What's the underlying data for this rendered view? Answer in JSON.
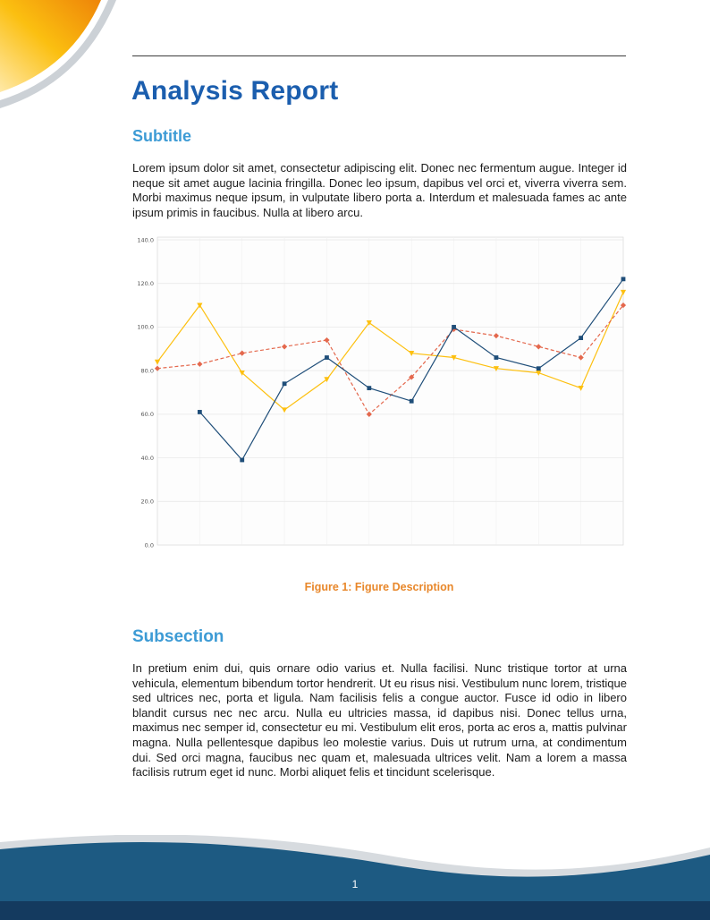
{
  "document": {
    "title": "Analysis Report",
    "section": {
      "heading": "Subtitle",
      "body": "Lorem ipsum dolor sit amet, consectetur adipiscing elit. Donec nec fermentum augue. Integer id neque sit amet augue lacinia fringilla. Donec leo ipsum, dapibus vel orci et, viverra viverra sem. Morbi maximus neque ipsum, in vulputate libero porta a. Interdum et malesuada fames ac ante ipsum primis in faucibus. Nulla at libero arcu."
    },
    "figure": {
      "caption_label": "Figure 1:",
      "caption_text": "Figure Description"
    },
    "subsection": {
      "heading": "Subsection",
      "body": "In pretium enim dui, quis ornare odio varius et. Nulla facilisi. Nunc tristique tortor at urna vehicula, elementum bibendum tortor hendrerit. Ut eu risus nisi. Vestibulum nunc lorem, tristique sed ultrices nec, porta et ligula. Nam facilisis felis a congue auctor. Fusce id odio in libero blandit cursus nec nec arcu. Nulla eu ultricies massa, id dapibus nisi. Donec tellus urna, maximus nec semper id, consectetur eu mi. Vestibulum elit eros, porta ac eros a, mattis pulvinar magna. Nulla pellentesque dapibus leo molestie varius. Duis ut rutrum urna, at condimentum dui. Sed orci magna, faucibus nec quam et, malesuada ultrices velit. Nam a lorem a massa facilisis rutrum eget id nunc. Morbi aliquet felis et tincidunt scelerisque."
    },
    "footer": {
      "page_number": "1"
    }
  },
  "colors": {
    "title_blue": "#1b5eae",
    "heading_blue": "#3d9bd5",
    "caption_orange": "#e8872a",
    "corner_orange": "#ee8408",
    "corner_yellow": "#fbbf10",
    "footer_wave_blue": "#1d5a82",
    "footer_bar_navy": "#143a5f",
    "footer_wave_gray": "#d7dbdf"
  },
  "chart_data": {
    "type": "line",
    "title": "",
    "xlabel": "",
    "ylabel": "",
    "x": [
      1,
      2,
      3,
      4,
      5,
      6,
      7,
      8,
      9,
      10,
      11,
      12
    ],
    "ylim": [
      0,
      140
    ],
    "yticks": [
      0,
      20,
      40,
      60,
      80,
      100,
      120,
      140
    ],
    "ytick_labels": [
      "0.0",
      "20.0",
      "40.0",
      "60.0",
      "80.0",
      "100.0",
      "120.0",
      "140.0"
    ],
    "grid": true,
    "legend": "none",
    "series": [
      {
        "name": "series-yellow",
        "color": "#fdc010",
        "marker": "triangle-down",
        "line_style": "solid",
        "values": [
          84,
          110,
          79,
          62,
          76,
          102,
          88,
          86,
          81,
          79,
          72,
          116
        ]
      },
      {
        "name": "series-red",
        "color": "#e4684d",
        "marker": "diamond",
        "line_style": "dashed",
        "values": [
          81,
          83,
          88,
          91,
          94,
          60,
          77,
          99,
          96,
          91,
          86,
          110
        ]
      },
      {
        "name": "series-blue",
        "color": "#1f4e79",
        "marker": "square",
        "line_style": "solid",
        "values": [
          null,
          61,
          39,
          74,
          86,
          72,
          66,
          100,
          86,
          81,
          95,
          122
        ]
      }
    ]
  }
}
